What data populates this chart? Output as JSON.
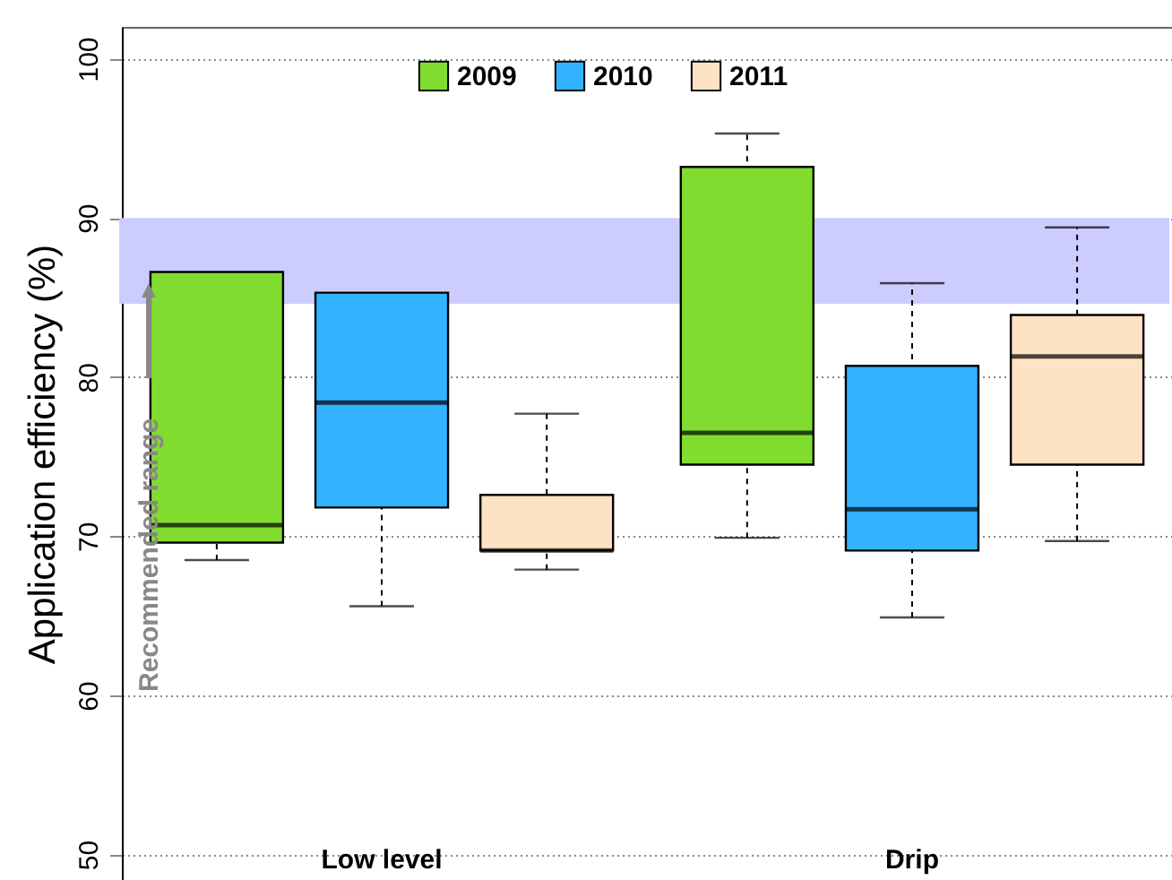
{
  "chart_data": {
    "type": "box",
    "ylabel": "Application efficiency (%)",
    "categories": [
      "Low level",
      "Drip"
    ],
    "series": [
      {
        "name": "2009",
        "color": "#80dd30",
        "boxes": [
          {
            "low": 68.5,
            "q1": 69.6,
            "median": 70.7,
            "q3": 86.6,
            "high": 86.6
          },
          {
            "low": 69.9,
            "q1": 74.5,
            "median": 76.5,
            "q3": 93.2,
            "high": 95.3
          }
        ]
      },
      {
        "name": "2010",
        "color": "#33b3ff",
        "boxes": [
          {
            "low": 65.6,
            "q1": 71.8,
            "median": 78.4,
            "q3": 85.3,
            "high": 85.3
          },
          {
            "low": 64.9,
            "q1": 69.1,
            "median": 71.7,
            "q3": 80.7,
            "high": 85.9
          }
        ]
      },
      {
        "name": "2011",
        "color": "#fde3c4",
        "boxes": [
          {
            "low": 67.9,
            "q1": 69.1,
            "median": 69.1,
            "q3": 72.6,
            "high": 77.7
          },
          {
            "low": 69.7,
            "q1": 74.5,
            "median": 81.3,
            "q3": 83.9,
            "high": 89.4
          }
        ]
      }
    ],
    "bands": [
      {
        "axis": "y",
        "from": 84.6,
        "to": 90,
        "color": "#ccccff"
      }
    ],
    "annotations": [
      "Recommended range"
    ],
    "ylim": [
      48.4,
      102
    ],
    "yticks": [
      50,
      60,
      70,
      80,
      90,
      100
    ],
    "grid": "y",
    "legend": "top"
  }
}
